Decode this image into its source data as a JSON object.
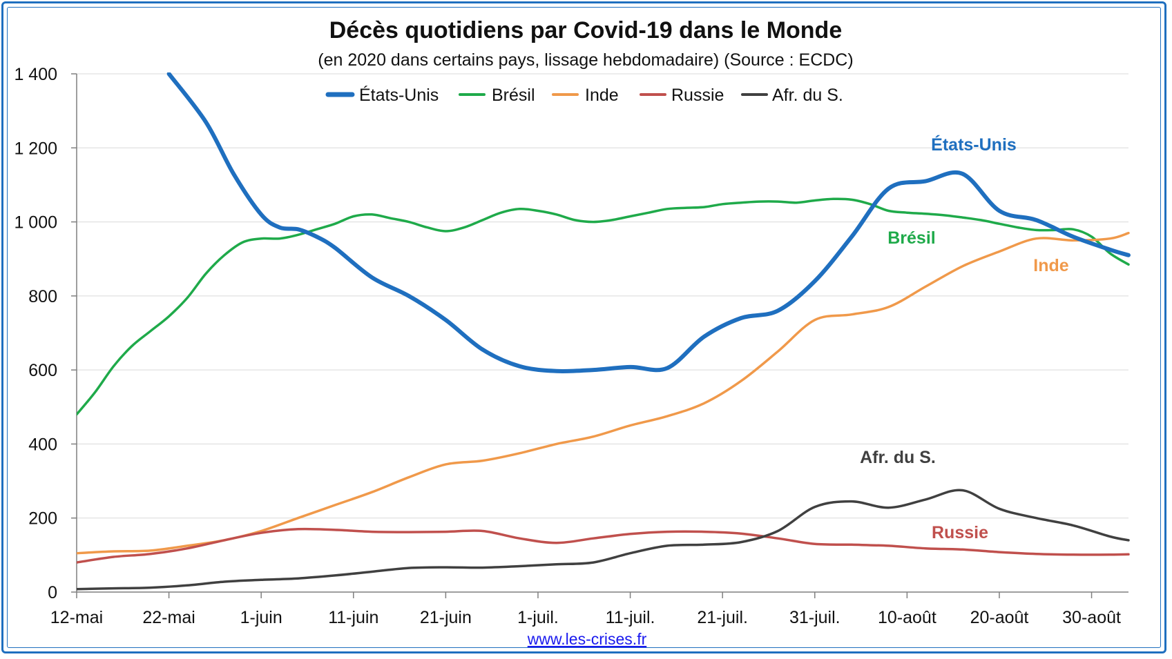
{
  "chart_data": {
    "type": "line",
    "title": "Décès quotidiens par Covid-19 dans le Monde",
    "subtitle": "(en 2020 dans certains pays, lissage hebdomadaire) (Source : ECDC)",
    "source_link": "www.les-crises.fr",
    "x_tick_labels": [
      "12-mai",
      "22-mai",
      "1-juin",
      "11-juin",
      "21-juin",
      "1-juil.",
      "11-juil.",
      "21-juil.",
      "31-juil.",
      "10-août",
      "20-août",
      "30-août"
    ],
    "y_ticks": [
      0,
      200,
      400,
      600,
      800,
      1000,
      1200,
      1400
    ],
    "y_tick_labels": [
      "0",
      "200",
      "400",
      "600",
      "800",
      "1 000",
      "1 200",
      "1 400"
    ],
    "xlim": [
      0,
      114
    ],
    "ylim": [
      0,
      1400
    ],
    "x_unit": "days since 12-mai",
    "grid": true,
    "legend_position": "top",
    "series": [
      {
        "name": "États-Unis",
        "label": "États-Unis",
        "color": "#1f6fbf",
        "thick": true,
        "x": [
          10,
          14,
          17,
          20,
          22,
          24,
          26,
          28,
          32,
          36,
          40,
          44,
          48,
          52,
          56,
          60,
          64,
          68,
          72,
          76,
          80,
          84,
          88,
          92,
          96,
          100,
          104,
          108,
          112,
          114
        ],
        "values": [
          1400,
          1270,
          1130,
          1020,
          985,
          980,
          960,
          930,
          850,
          800,
          735,
          655,
          610,
          597,
          600,
          608,
          605,
          690,
          740,
          760,
          840,
          960,
          1090,
          1110,
          1130,
          1030,
          1005,
          960,
          925,
          910
        ]
      },
      {
        "name": "Brésil",
        "label": "Brésil",
        "color": "#1faa4a",
        "thick": false,
        "x": [
          0,
          2,
          4,
          6,
          8,
          10,
          12,
          14,
          16,
          18,
          20,
          22,
          24,
          26,
          28,
          30,
          32,
          34,
          36,
          38,
          40,
          42,
          44,
          46,
          48,
          50,
          52,
          54,
          56,
          58,
          60,
          62,
          64,
          66,
          68,
          70,
          72,
          74,
          76,
          78,
          80,
          82,
          84,
          86,
          88,
          90,
          92,
          94,
          96,
          98,
          100,
          102,
          104,
          106,
          108,
          110,
          112,
          114
        ],
        "values": [
          480,
          540,
          610,
          665,
          705,
          745,
          795,
          860,
          910,
          945,
          955,
          955,
          965,
          980,
          995,
          1015,
          1020,
          1010,
          1000,
          985,
          975,
          985,
          1005,
          1025,
          1035,
          1030,
          1020,
          1005,
          1000,
          1005,
          1015,
          1025,
          1035,
          1038,
          1040,
          1048,
          1052,
          1055,
          1055,
          1052,
          1058,
          1062,
          1060,
          1048,
          1030,
          1025,
          1022,
          1018,
          1012,
          1005,
          995,
          985,
          978,
          978,
          980,
          960,
          915,
          885
        ]
      },
      {
        "name": "Inde",
        "label": "Inde",
        "color": "#f0994a",
        "thick": false,
        "x": [
          0,
          4,
          8,
          12,
          16,
          20,
          24,
          28,
          32,
          36,
          40,
          44,
          48,
          52,
          56,
          60,
          64,
          68,
          72,
          76,
          80,
          84,
          88,
          92,
          96,
          100,
          104,
          108,
          112,
          114
        ],
        "values": [
          105,
          110,
          112,
          125,
          140,
          165,
          200,
          235,
          270,
          310,
          345,
          355,
          375,
          400,
          420,
          450,
          475,
          510,
          570,
          650,
          735,
          750,
          770,
          825,
          880,
          920,
          955,
          950,
          955,
          970
        ]
      },
      {
        "name": "Russie",
        "label": "Russie",
        "color": "#c0504d",
        "thick": false,
        "x": [
          0,
          4,
          8,
          12,
          16,
          20,
          24,
          28,
          32,
          36,
          40,
          44,
          48,
          52,
          56,
          60,
          64,
          68,
          72,
          76,
          80,
          84,
          88,
          92,
          96,
          100,
          104,
          108,
          112,
          114
        ],
        "values": [
          80,
          95,
          103,
          118,
          140,
          160,
          170,
          168,
          163,
          162,
          163,
          165,
          145,
          133,
          145,
          157,
          163,
          163,
          158,
          145,
          130,
          128,
          125,
          118,
          115,
          108,
          103,
          101,
          101,
          102
        ]
      },
      {
        "name": "Afr. du S.",
        "label": "Afr. du S.",
        "color": "#404040",
        "thick": false,
        "x": [
          0,
          4,
          8,
          12,
          16,
          20,
          24,
          28,
          32,
          36,
          40,
          44,
          48,
          52,
          56,
          60,
          64,
          68,
          72,
          76,
          80,
          84,
          88,
          92,
          96,
          100,
          104,
          108,
          112,
          114
        ],
        "values": [
          8,
          10,
          12,
          18,
          28,
          33,
          37,
          45,
          55,
          65,
          67,
          66,
          70,
          75,
          80,
          105,
          125,
          128,
          135,
          165,
          230,
          245,
          228,
          250,
          275,
          225,
          200,
          180,
          150,
          140
        ]
      }
    ]
  }
}
